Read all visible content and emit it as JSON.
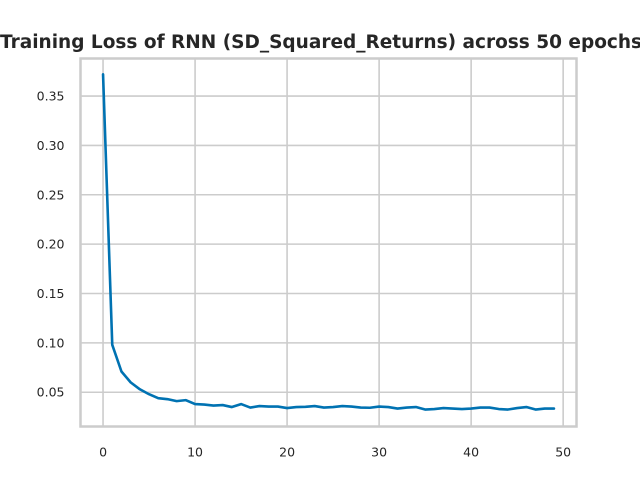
{
  "chart_data": {
    "type": "line",
    "title": "Training Loss of RNN (SD_Squared_Returns) across 50 epochs",
    "xlabel": "",
    "ylabel": "",
    "xlim": [
      -2.45,
      51.45
    ],
    "ylim": [
      0.0153,
      0.388
    ],
    "xticks": [
      0,
      10,
      20,
      30,
      40,
      50
    ],
    "yticks": [
      0.05,
      0.1,
      0.15,
      0.2,
      0.25,
      0.3,
      0.35
    ],
    "grid": true,
    "legend": "none",
    "series": [
      {
        "color": "#0072b2",
        "x": [
          0,
          1,
          2,
          3,
          4,
          5,
          6,
          7,
          8,
          9,
          10,
          11,
          12,
          13,
          14,
          15,
          16,
          17,
          18,
          19,
          20,
          21,
          22,
          23,
          24,
          25,
          26,
          27,
          28,
          29,
          30,
          31,
          32,
          33,
          34,
          35,
          36,
          37,
          38,
          39,
          40,
          41,
          42,
          43,
          44,
          45,
          46,
          47,
          48,
          49
        ],
        "y": [
          0.372,
          0.098,
          0.071,
          0.06,
          0.053,
          0.048,
          0.044,
          0.043,
          0.041,
          0.042,
          0.038,
          0.0375,
          0.0365,
          0.037,
          0.035,
          0.038,
          0.0345,
          0.036,
          0.0355,
          0.0355,
          0.034,
          0.035,
          0.0352,
          0.036,
          0.0345,
          0.035,
          0.036,
          0.0355,
          0.0345,
          0.0343,
          0.0355,
          0.035,
          0.0335,
          0.0345,
          0.035,
          0.0325,
          0.033,
          0.034,
          0.0335,
          0.033,
          0.0335,
          0.0345,
          0.0345,
          0.033,
          0.0325,
          0.034,
          0.035,
          0.0325,
          0.0335,
          0.0335
        ]
      }
    ]
  }
}
